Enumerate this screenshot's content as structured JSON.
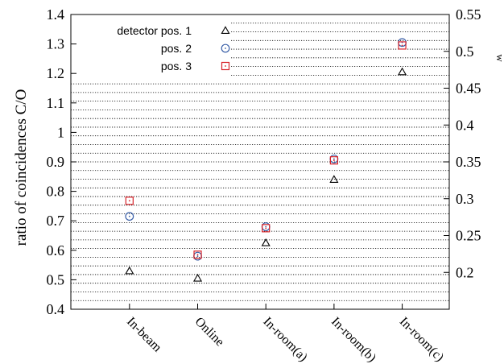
{
  "chart_data": {
    "type": "scatter",
    "categories": [
      "In-beam",
      "Online",
      "In-room(a)",
      "In-room(b)",
      "In-room(c)"
    ],
    "series": [
      {
        "name": "detector pos. 1",
        "marker": "triangle",
        "color": "#000000",
        "values": [
          0.53,
          0.505,
          0.625,
          0.84,
          1.205
        ]
      },
      {
        "name": "pos. 2",
        "marker": "circle",
        "color": "#3a5fa8",
        "values": [
          0.715,
          0.58,
          0.68,
          0.91,
          1.305
        ]
      },
      {
        "name": "pos. 3",
        "marker": "square",
        "color": "#d8232a",
        "values": [
          0.768,
          0.585,
          0.675,
          0.905,
          1.295
        ]
      }
    ],
    "ylabel": "ratio of coincidences C/O",
    "ylim": [
      0.4,
      1.4
    ],
    "yticks": [
      "0.4",
      "0.5",
      "0.6",
      "0.7",
      "0.8",
      "0.9",
      "1",
      "1.1",
      "1.2",
      "1.3",
      "1.4"
    ],
    "y2lim": [
      0.15,
      0.55
    ],
    "y2ticks": [
      "0.2",
      "0.25",
      "0.3",
      "0.35",
      "0.4",
      "0.45",
      "0.5",
      "0.55"
    ],
    "y2label_fragment": "w",
    "grid": "dotted-horizontal",
    "legend_position": "top-left"
  }
}
